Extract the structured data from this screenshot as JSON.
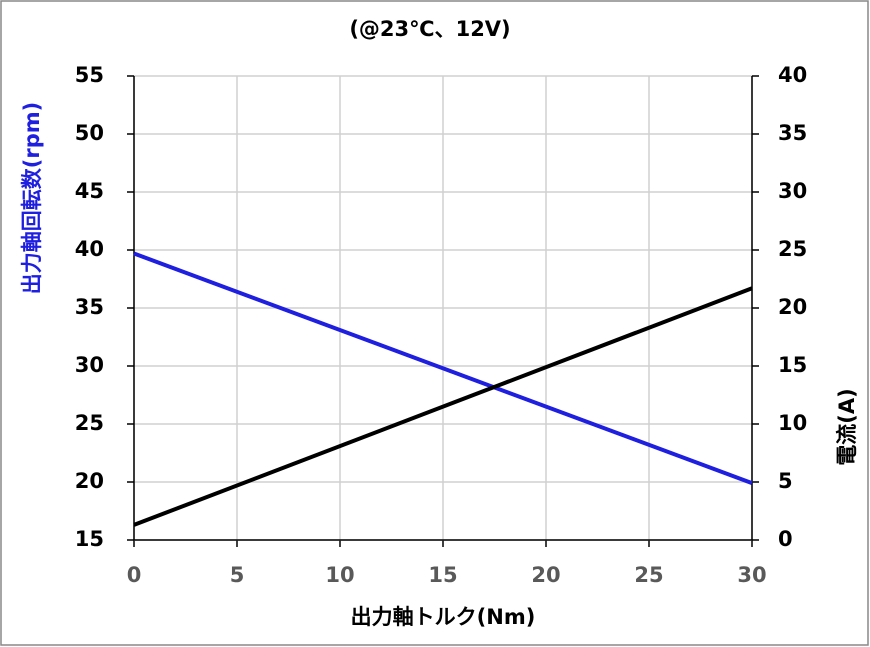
{
  "chart_data": {
    "type": "line",
    "title": "(@23℃、12V)",
    "x_label": "出力軸トルク(Nm)",
    "y_label": "出力軸回転数(rpm)",
    "y2_label": "電流(A)",
    "x": [
      0,
      30
    ],
    "series": [
      {
        "color": "#1f1fe0",
        "values": [
          39.7,
          19.9
        ],
        "axis": "y"
      },
      {
        "color": "#000000",
        "values": [
          1.3,
          21.7
        ],
        "axis": "y2"
      }
    ],
    "xlim": [
      0,
      30
    ],
    "xticks": [
      0,
      5,
      10,
      15,
      20,
      25,
      30
    ],
    "ylim": [
      15,
      55
    ],
    "yticks": [
      15,
      20,
      25,
      30,
      35,
      40,
      45,
      50,
      55
    ],
    "y2lim": [
      0,
      40
    ],
    "y2ticks": [
      0,
      5,
      10,
      15,
      20,
      25,
      30,
      35,
      40
    ],
    "grid": true,
    "y_label_color": "#1f1fe0"
  }
}
